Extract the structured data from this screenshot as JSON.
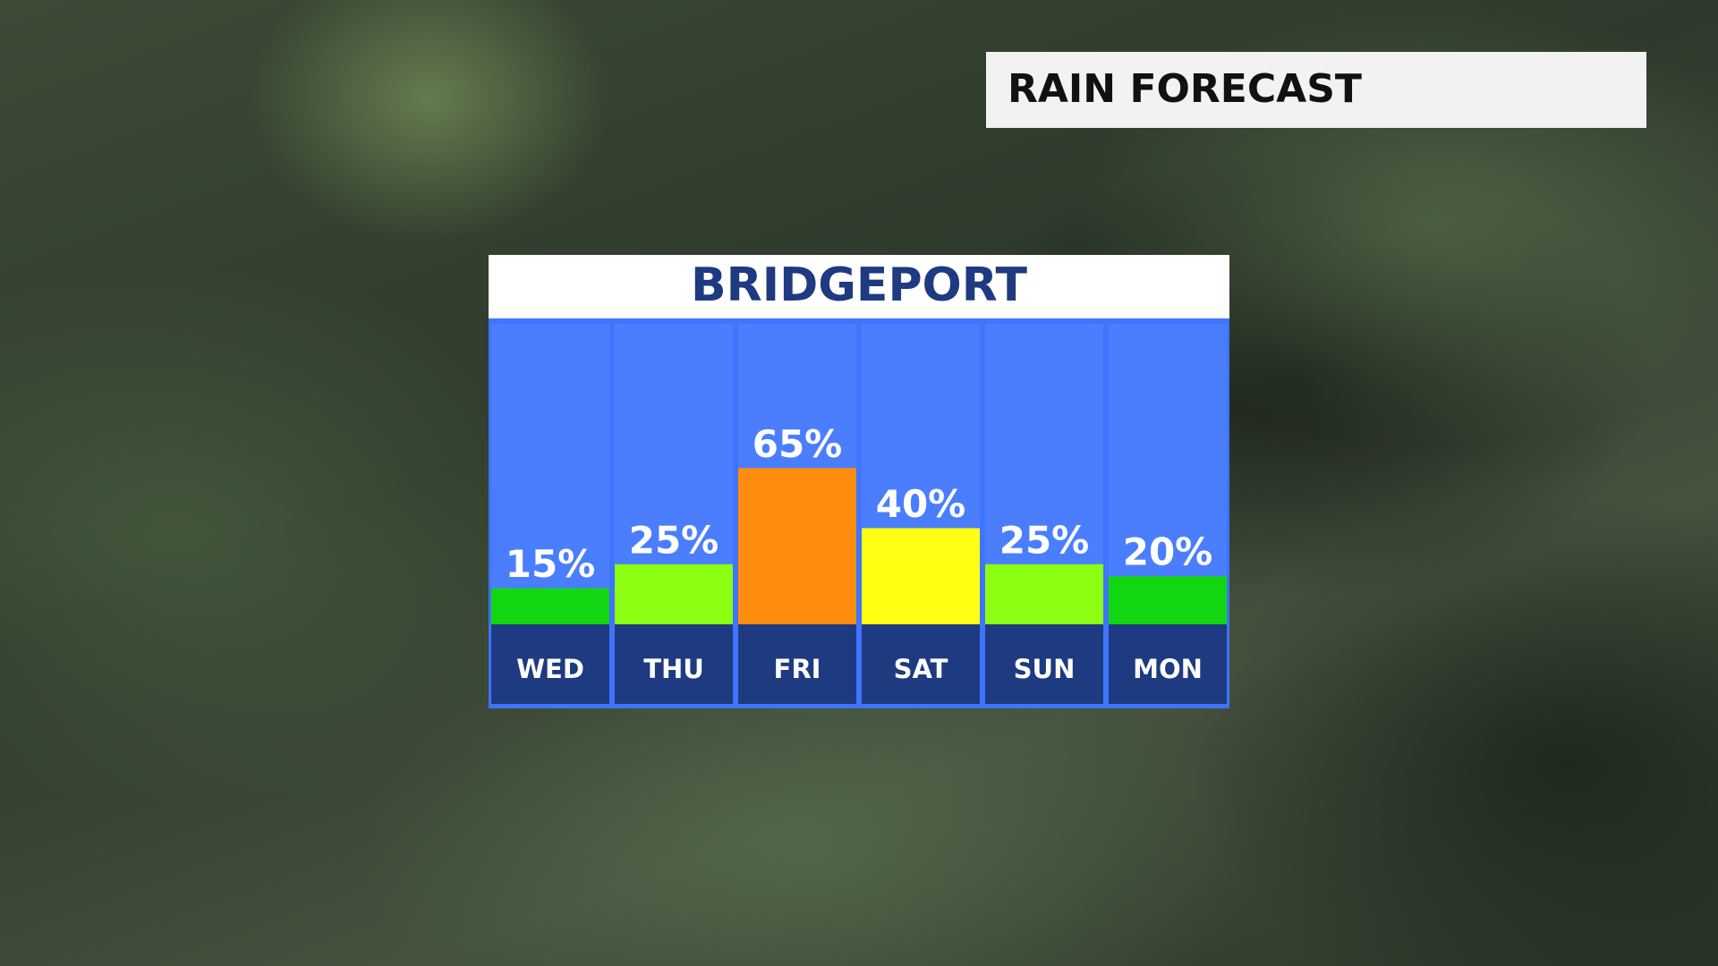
{
  "header": {
    "title": "RAIN FORECAST"
  },
  "chart_data": {
    "type": "bar",
    "title": "BRIDGEPORT",
    "categories": [
      "WED",
      "THU",
      "FRI",
      "SAT",
      "SUN",
      "MON"
    ],
    "values": [
      15,
      25,
      65,
      40,
      25,
      20
    ],
    "value_labels": [
      "15%",
      "25%",
      "65%",
      "40%",
      "25%",
      "20%"
    ],
    "colors": [
      "#12d612",
      "#8cff12",
      "#ff8c0f",
      "#ffff14",
      "#8cff12",
      "#12d612"
    ],
    "ylim": [
      0,
      125
    ]
  }
}
